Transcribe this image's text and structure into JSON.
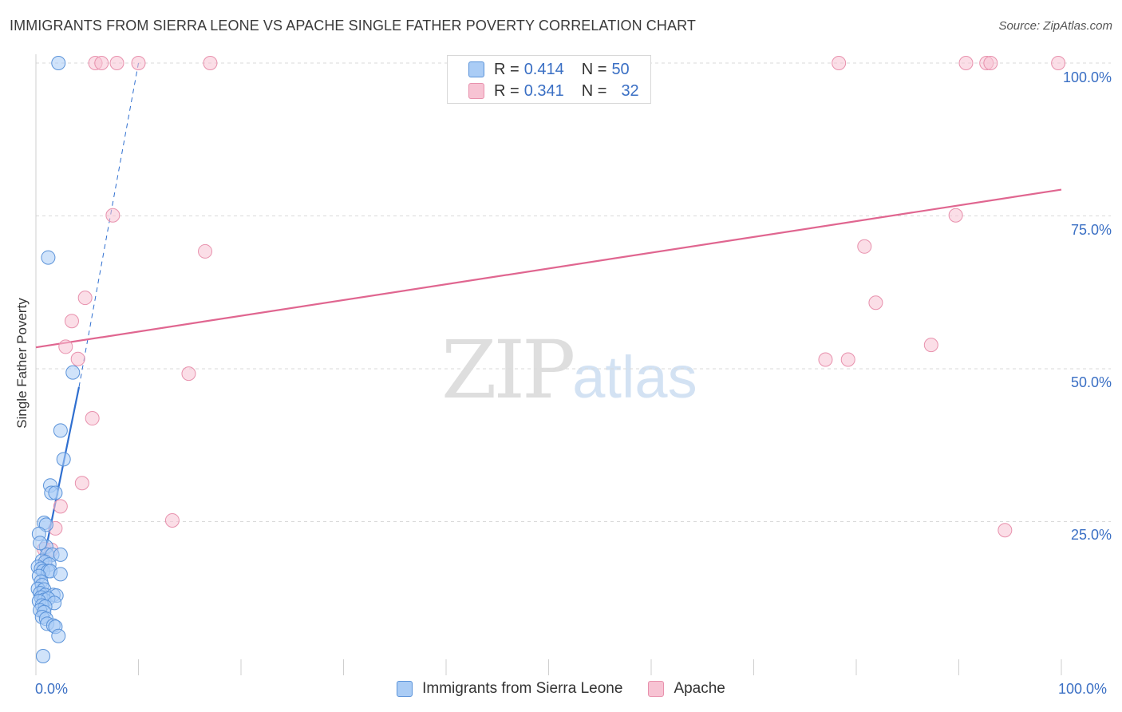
{
  "title": "IMMIGRANTS FROM SIERRA LEONE VS APACHE SINGLE FATHER POVERTY CORRELATION CHART",
  "source": "Source: ZipAtlas.com",
  "watermark": {
    "zip": "ZIP",
    "atlas": "atlas"
  },
  "legend": {
    "rows": [
      {
        "r_key": "R =",
        "r_value": "0.414",
        "n_key": "N =",
        "n_value": "50"
      },
      {
        "r_key": "R =",
        "r_value": "0.341",
        "n_key": "N =",
        "n_value": "32"
      }
    ]
  },
  "bottom_legend": {
    "series1": "Immigrants from Sierra Leone",
    "series2": "Apache"
  },
  "colors": {
    "blue_fill": "#aaccf5",
    "blue_stroke": "#5b93d9",
    "blue_line": "#2f6fd0",
    "pink_fill": "#f7c3d3",
    "pink_stroke": "#e891ad",
    "pink_line": "#e06690",
    "grid": "#d9d9d9",
    "axis_text": "#3a6fc4"
  },
  "chart_data": {
    "type": "scatter",
    "title": "IMMIGRANTS FROM SIERRA LEONE VS APACHE SINGLE FATHER POVERTY CORRELATION CHART",
    "ylabel": "Single Father Poverty",
    "xlabel": "",
    "xlim": [
      0,
      100
    ],
    "ylim": [
      0,
      100
    ],
    "x_ticks": [
      "0.0%",
      "100.0%"
    ],
    "y_ticks": [
      "25.0%",
      "50.0%",
      "75.0%",
      "100.0%"
    ],
    "grid": true,
    "legend_position": "top-center",
    "series": [
      {
        "name": "Immigrants from Sierra Leone",
        "color": "#aaccf5",
        "R": 0.414,
        "N": 50,
        "trend": {
          "x": [
            0.0,
            4.2
          ],
          "y": [
            12.5,
            47.0
          ],
          "extended_to": [
            10.0,
            100.0
          ]
        },
        "points": [
          [
            2.2,
            100.0
          ],
          [
            1.2,
            68.2
          ],
          [
            3.6,
            49.4
          ],
          [
            2.4,
            39.9
          ],
          [
            2.7,
            35.2
          ],
          [
            1.4,
            30.9
          ],
          [
            1.5,
            29.7
          ],
          [
            1.9,
            29.7
          ],
          [
            0.8,
            24.8
          ],
          [
            1.0,
            24.5
          ],
          [
            0.3,
            23.0
          ],
          [
            1.0,
            20.9
          ],
          [
            1.1,
            19.6
          ],
          [
            1.6,
            19.6
          ],
          [
            2.4,
            19.6
          ],
          [
            0.6,
            18.6
          ],
          [
            0.9,
            18.4
          ],
          [
            1.3,
            18.0
          ],
          [
            0.2,
            17.6
          ],
          [
            0.5,
            17.3
          ],
          [
            0.7,
            16.9
          ],
          [
            1.2,
            16.9
          ],
          [
            1.4,
            16.9
          ],
          [
            2.4,
            16.4
          ],
          [
            0.3,
            16.1
          ],
          [
            0.5,
            15.2
          ],
          [
            0.6,
            14.6
          ],
          [
            0.2,
            14.0
          ],
          [
            0.8,
            13.9
          ],
          [
            0.4,
            13.3
          ],
          [
            0.9,
            13.0
          ],
          [
            1.7,
            13.0
          ],
          [
            2.0,
            12.9
          ],
          [
            0.5,
            12.6
          ],
          [
            0.8,
            12.2
          ],
          [
            1.2,
            12.4
          ],
          [
            0.3,
            12.0
          ],
          [
            1.8,
            11.7
          ],
          [
            0.6,
            11.3
          ],
          [
            0.9,
            11.1
          ],
          [
            0.4,
            10.5
          ],
          [
            0.8,
            10.2
          ],
          [
            0.6,
            9.4
          ],
          [
            1.0,
            9.1
          ],
          [
            1.1,
            8.3
          ],
          [
            1.7,
            8.0
          ],
          [
            1.9,
            7.8
          ],
          [
            2.2,
            6.3
          ],
          [
            0.7,
            3.0
          ],
          [
            0.4,
            21.5
          ]
        ]
      },
      {
        "name": "Apache",
        "color": "#f7c3d3",
        "R": 0.341,
        "N": 32,
        "trend": {
          "x": [
            0.0,
            100.0
          ],
          "y": [
            53.5,
            79.3
          ]
        },
        "points": [
          [
            5.8,
            100.0
          ],
          [
            6.4,
            100.0
          ],
          [
            7.9,
            100.0
          ],
          [
            10.0,
            100.0
          ],
          [
            17.0,
            100.0
          ],
          [
            78.3,
            100.0
          ],
          [
            90.7,
            100.0
          ],
          [
            92.7,
            100.0
          ],
          [
            93.1,
            100.0
          ],
          [
            99.7,
            100.0
          ],
          [
            7.5,
            75.1
          ],
          [
            16.5,
            69.2
          ],
          [
            89.7,
            75.1
          ],
          [
            80.8,
            70.0
          ],
          [
            81.9,
            60.8
          ],
          [
            4.8,
            61.6
          ],
          [
            3.5,
            57.8
          ],
          [
            2.9,
            53.6
          ],
          [
            4.1,
            51.6
          ],
          [
            14.9,
            49.2
          ],
          [
            77.0,
            51.5
          ],
          [
            79.2,
            51.5
          ],
          [
            87.3,
            53.9
          ],
          [
            5.5,
            41.9
          ],
          [
            4.5,
            31.3
          ],
          [
            2.4,
            27.5
          ],
          [
            1.9,
            23.9
          ],
          [
            13.3,
            25.2
          ],
          [
            94.5,
            23.6
          ],
          [
            0.8,
            20.5
          ],
          [
            1.5,
            20.4
          ],
          [
            0.9,
            18.4
          ]
        ]
      }
    ]
  }
}
